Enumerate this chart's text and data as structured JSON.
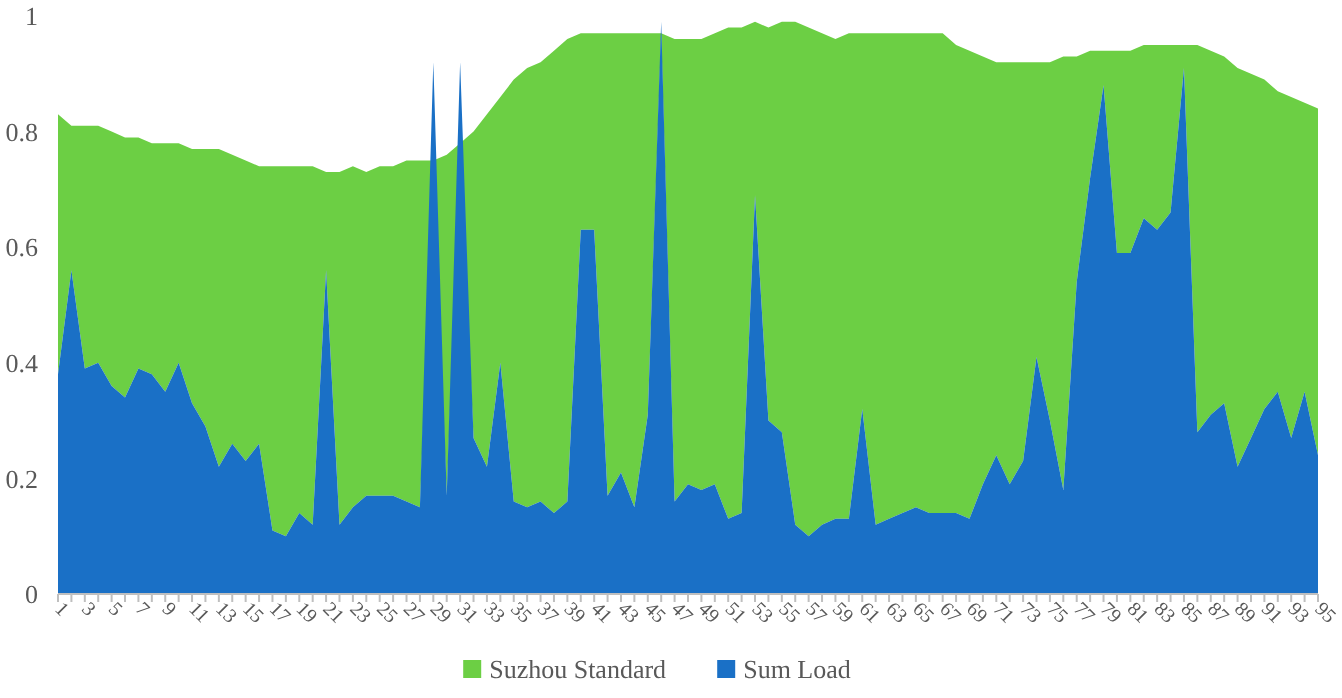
{
  "chart_data": {
    "type": "area",
    "categories": [
      "1",
      null,
      "3",
      null,
      "5",
      null,
      "7",
      null,
      "9",
      null,
      "11",
      null,
      "13",
      null,
      "15",
      null,
      "17",
      null,
      "19",
      null,
      "21",
      null,
      "23",
      null,
      "25",
      null,
      "27",
      null,
      "29",
      null,
      "31",
      null,
      "33",
      null,
      "35",
      null,
      "37",
      null,
      "39",
      null,
      "41",
      null,
      "43",
      null,
      "45",
      null,
      "47",
      null,
      "49",
      null,
      "51",
      null,
      "53",
      null,
      "55",
      null,
      "57",
      null,
      "59",
      null,
      "61",
      null,
      "63",
      null,
      "65",
      null,
      "67",
      null,
      "69",
      null,
      "71",
      null,
      "73",
      null,
      "75",
      null,
      "77",
      null,
      "79",
      null,
      "81",
      null,
      "83",
      null,
      "85",
      null,
      "87",
      null,
      "89",
      null,
      "91",
      null,
      "93",
      null,
      "95"
    ],
    "series": [
      {
        "name": "Suzhou Standard",
        "color": "#6ccf44",
        "values": [
          0.83,
          0.81,
          0.81,
          0.81,
          0.8,
          0.79,
          0.79,
          0.78,
          0.78,
          0.78,
          0.77,
          0.77,
          0.77,
          0.76,
          0.75,
          0.74,
          0.74,
          0.74,
          0.74,
          0.74,
          0.73,
          0.73,
          0.74,
          0.73,
          0.74,
          0.74,
          0.75,
          0.75,
          0.75,
          0.76,
          0.78,
          0.8,
          0.83,
          0.86,
          0.89,
          0.91,
          0.92,
          0.94,
          0.96,
          0.97,
          0.97,
          0.97,
          0.97,
          0.97,
          0.97,
          0.97,
          0.96,
          0.96,
          0.96,
          0.97,
          0.98,
          0.98,
          0.99,
          0.98,
          0.99,
          0.99,
          0.98,
          0.97,
          0.96,
          0.97,
          0.97,
          0.97,
          0.97,
          0.97,
          0.97,
          0.97,
          0.97,
          0.95,
          0.94,
          0.93,
          0.92,
          0.92,
          0.92,
          0.92,
          0.92,
          0.93,
          0.93,
          0.94,
          0.94,
          0.94,
          0.94,
          0.95,
          0.95,
          0.95,
          0.95,
          0.95,
          0.94,
          0.93,
          0.91,
          0.9,
          0.89,
          0.87,
          0.86,
          0.85,
          0.84
        ]
      },
      {
        "name": "Sum Load",
        "color": "#1a70c6",
        "values": [
          0.38,
          0.56,
          0.39,
          0.4,
          0.36,
          0.34,
          0.39,
          0.38,
          0.35,
          0.4,
          0.33,
          0.29,
          0.22,
          0.26,
          0.23,
          0.26,
          0.11,
          0.1,
          0.14,
          0.12,
          0.56,
          0.12,
          0.15,
          0.17,
          0.17,
          0.17,
          0.16,
          0.15,
          0.92,
          0.17,
          0.92,
          0.27,
          0.22,
          0.4,
          0.16,
          0.15,
          0.16,
          0.14,
          0.16,
          0.63,
          0.63,
          0.17,
          0.21,
          0.15,
          0.31,
          0.99,
          0.16,
          0.19,
          0.18,
          0.19,
          0.13,
          0.14,
          0.69,
          0.3,
          0.28,
          0.12,
          0.1,
          0.12,
          0.13,
          0.13,
          0.32,
          0.12,
          0.13,
          0.14,
          0.15,
          0.14,
          0.14,
          0.14,
          0.13,
          0.19,
          0.24,
          0.19,
          0.23,
          0.41,
          0.3,
          0.18,
          0.54,
          0.72,
          0.88,
          0.59,
          0.59,
          0.65,
          0.63,
          0.66,
          0.91,
          0.28,
          0.31,
          0.33,
          0.22,
          0.27,
          0.32,
          0.35,
          0.27,
          0.35,
          0.24
        ]
      }
    ],
    "ylim": [
      0,
      1
    ],
    "yticks": [
      0,
      0.2,
      0.4,
      0.6,
      0.8,
      1
    ],
    "grid": false,
    "legend": "bottom"
  }
}
